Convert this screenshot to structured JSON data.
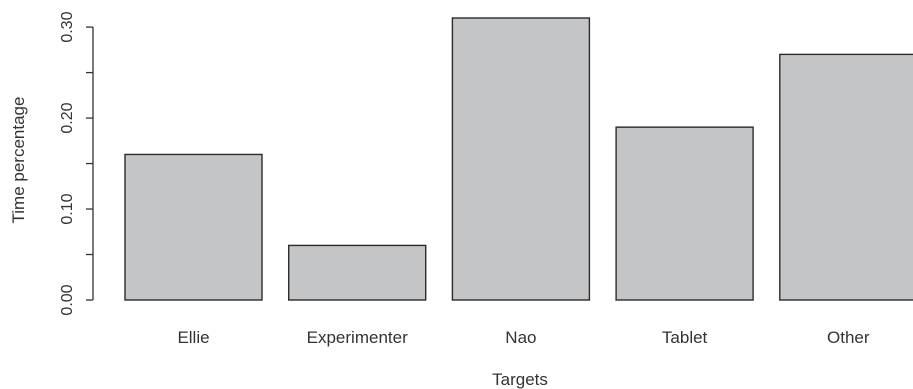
{
  "chart_data": {
    "type": "bar",
    "title": "",
    "xlabel": "Targets",
    "ylabel": "Time percentage",
    "categories": [
      "Ellie",
      "Experimenter",
      "Nao",
      "Tablet",
      "Other"
    ],
    "values": [
      0.16,
      0.06,
      0.31,
      0.19,
      0.27
    ],
    "ylim": [
      0,
      0.31
    ],
    "yticks": [
      0.0,
      0.05,
      0.1,
      0.15,
      0.2,
      0.25,
      0.3
    ],
    "ytick_labels": [
      "0.00",
      "",
      "0.10",
      "",
      "0.20",
      "",
      "0.30"
    ],
    "grid": false,
    "colors": {
      "bar_fill": "#c4c5c7",
      "bar_stroke": "#2b2b2b",
      "text": "#333333"
    }
  }
}
